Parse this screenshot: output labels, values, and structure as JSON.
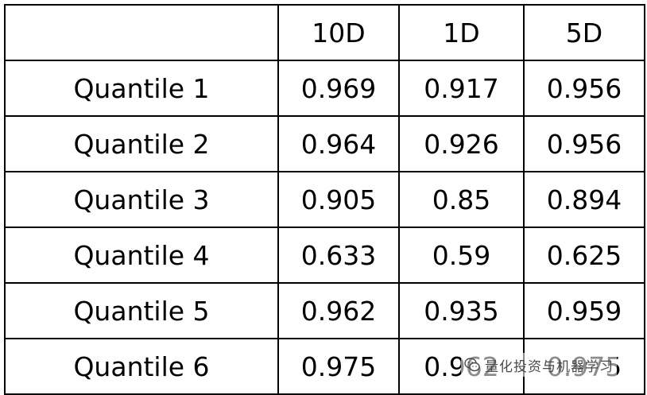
{
  "table": {
    "header": [
      "",
      "10D",
      "1D",
      "5D"
    ],
    "rows": [
      [
        "Quantile 1",
        "0.969",
        "0.917",
        "0.956"
      ],
      [
        "Quantile 2",
        "0.964",
        "0.926",
        "0.956"
      ],
      [
        "Quantile 3",
        "0.905",
        "0.85",
        "0.894"
      ],
      [
        "Quantile 4",
        "0.633",
        "0.59",
        "0.625"
      ],
      [
        "Quantile 5",
        "0.962",
        "0.935",
        "0.959"
      ],
      [
        "Quantile 6",
        "0.975",
        "0.962",
        "0.975"
      ]
    ]
  },
  "watermark": {
    "text": "量化投资与机器学习",
    "icon": "wechat-icon"
  }
}
